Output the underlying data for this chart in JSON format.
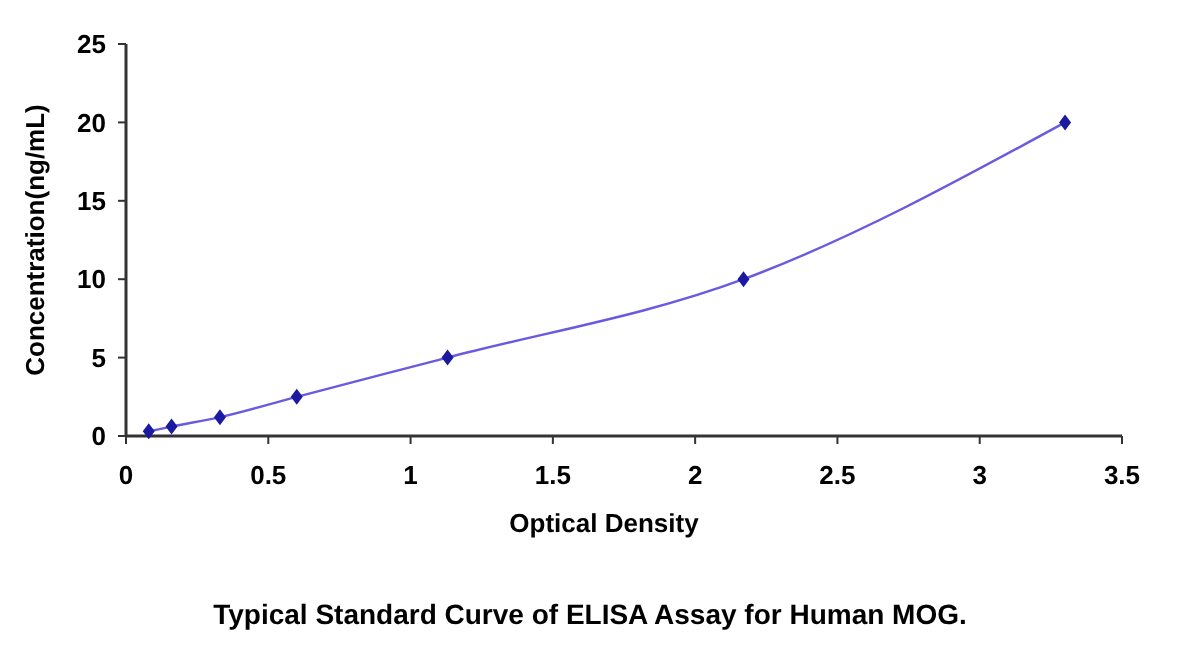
{
  "chart_data": {
    "type": "line",
    "title": "Typical Standard Curve of ELISA Assay for Human MOG.",
    "xlabel": "Optical Density",
    "ylabel": "Concentration(ng/mL)",
    "x": [
      0.08,
      0.16,
      0.33,
      0.6,
      1.13,
      2.17,
      3.3
    ],
    "series": [
      {
        "color": "#1a1aa0",
        "values": [
          0.3,
          0.6,
          1.2,
          2.5,
          5,
          10,
          20
        ]
      }
    ],
    "xlim": [
      0,
      3.5
    ],
    "xticks": [
      0,
      0.5,
      1,
      1.5,
      2,
      2.5,
      3,
      3.5
    ],
    "ylim": [
      0,
      25
    ],
    "yticks": [
      0,
      5,
      10,
      15,
      20,
      25
    ],
    "grid": false,
    "marker": "diamond",
    "line_style": "solid"
  }
}
